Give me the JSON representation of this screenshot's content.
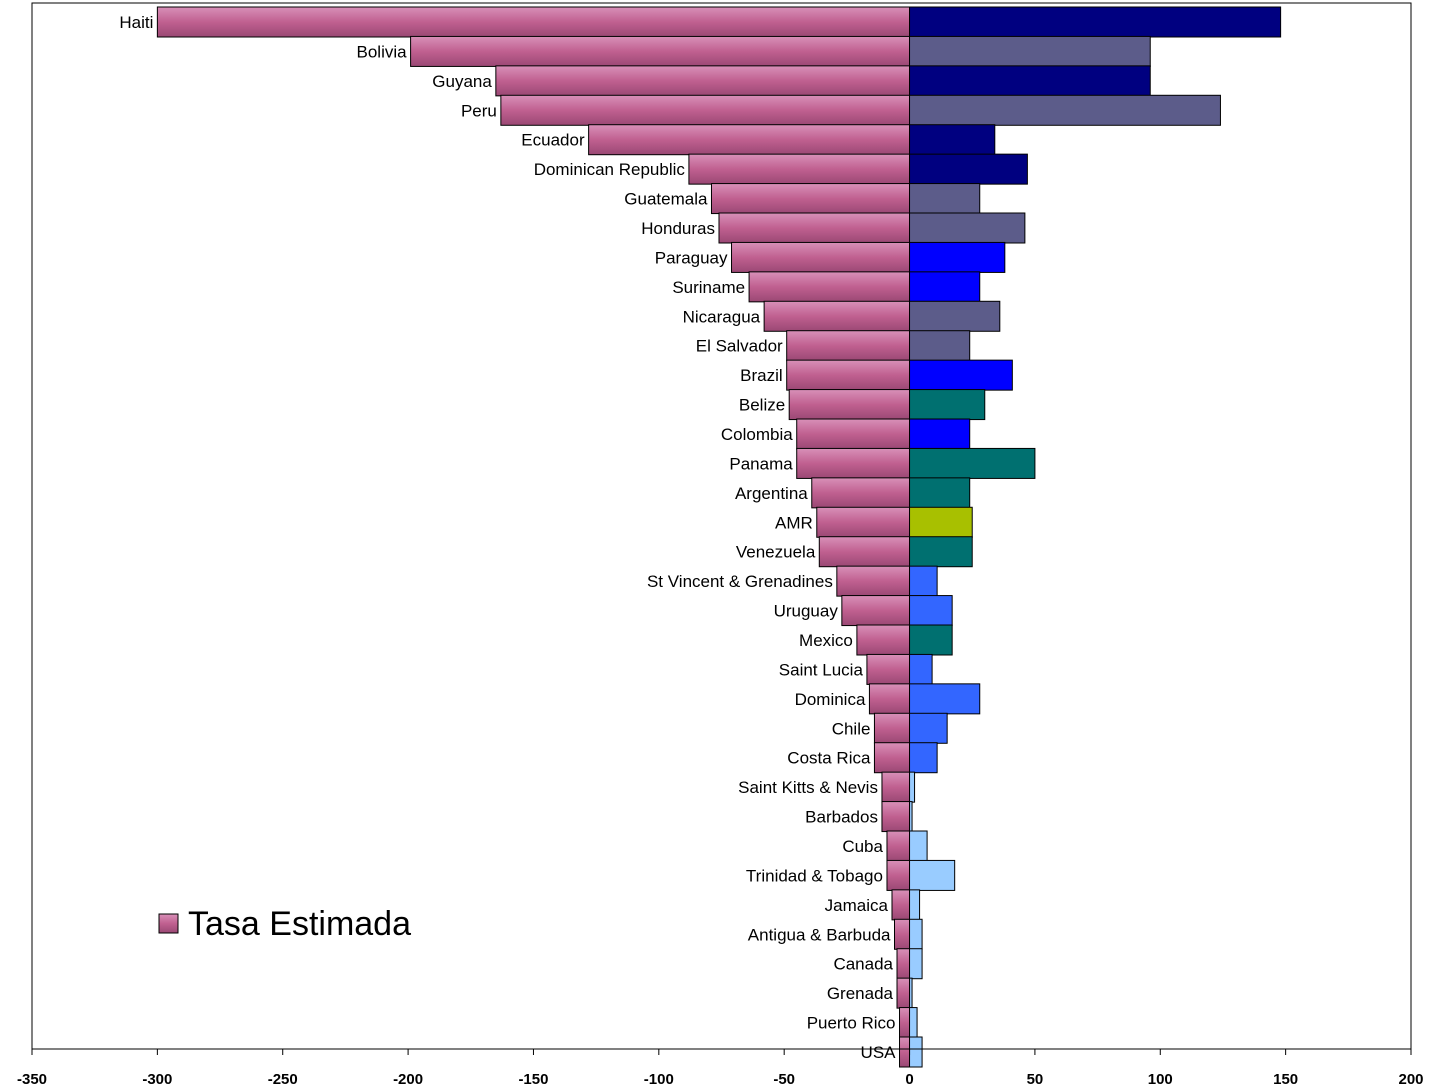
{
  "chart_data": {
    "type": "bar",
    "orientation": "horizontal",
    "categories": [
      "Haiti",
      "Bolivia",
      "Guyana",
      "Peru",
      "Ecuador",
      "Dominican Republic",
      "Guatemala",
      "Honduras",
      "Paraguay",
      "Suriname",
      "Nicaragua",
      "El Salvador",
      "Brazil",
      "Belize",
      "Colombia",
      "Panama",
      "Argentina",
      "AMR",
      "Venezuela",
      "St Vincent & Grenadines",
      "Uruguay",
      "Mexico",
      "Saint Lucia",
      "Dominica",
      "Chile",
      "Costa Rica",
      "Saint Kitts & Nevis",
      "Barbados",
      "Cuba",
      "Trinidad & Tobago",
      "Jamaica",
      "Antigua & Barbuda",
      "Canada",
      "Grenada",
      "Puerto Rico",
      "USA"
    ],
    "series": [
      {
        "name": "Tasa Estimada",
        "color": "#c06090",
        "values": [
          -300,
          -199,
          -165,
          -163,
          -128,
          -88,
          -79,
          -76,
          -71,
          -64,
          -58,
          -49,
          -49,
          -48,
          -45,
          -45,
          -39,
          -37,
          -36,
          -29,
          -27,
          -21,
          -17,
          -16,
          -14,
          -14,
          -11,
          -11,
          -9,
          -9,
          -7,
          -6,
          -5,
          -5,
          -4,
          -4
        ]
      },
      {
        "name": "",
        "values": [
          148,
          96,
          96,
          124,
          34,
          47,
          28,
          46,
          38,
          28,
          36,
          24,
          41,
          30,
          24,
          50,
          24,
          25,
          25,
          11,
          17,
          17,
          9,
          28,
          15,
          11,
          2,
          1,
          7,
          18,
          4,
          5,
          5,
          1,
          3,
          5
        ],
        "colors": [
          "#000080",
          "#5c5c8a",
          "#000080",
          "#5c5c8a",
          "#000080",
          "#000080",
          "#5c5c8a",
          "#5c5c8a",
          "#0000ff",
          "#0000ff",
          "#5c5c8a",
          "#5c5c8a",
          "#0000ff",
          "#007070",
          "#0000ff",
          "#007070",
          "#007070",
          "#a8c000",
          "#007070",
          "#3366ff",
          "#3366ff",
          "#007070",
          "#3366ff",
          "#3366ff",
          "#3366ff",
          "#3366ff",
          "#99ccff",
          "#99ccff",
          "#99ccff",
          "#99ccff",
          "#99ccff",
          "#99ccff",
          "#99ccff",
          "#99ccff",
          "#99ccff",
          "#99ccff"
        ]
      }
    ],
    "xlim": [
      -350,
      200
    ],
    "xticks": [
      -350,
      -300,
      -250,
      -200,
      -150,
      -100,
      -50,
      0,
      50,
      100,
      150,
      200
    ],
    "legend": {
      "position": "bottom-left",
      "entries": [
        "Tasa Estimada"
      ]
    },
    "grid": false
  }
}
